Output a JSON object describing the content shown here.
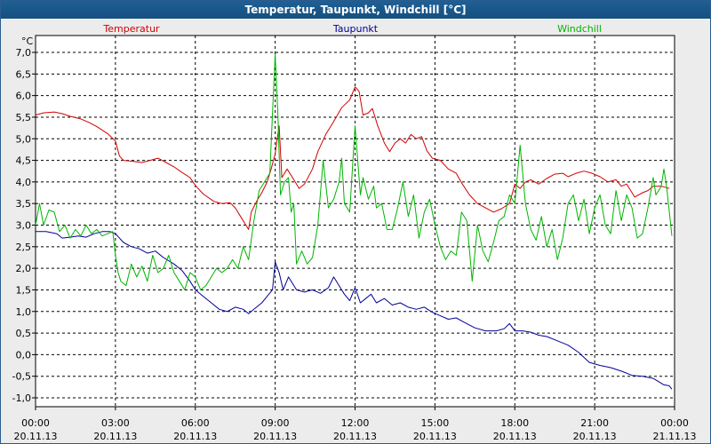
{
  "chart_data": {
    "type": "line",
    "title": "Temperatur, Taupunkt, Windchill [°C]",
    "ylabel": "°C",
    "ylim": [
      -1.1,
      7.2
    ],
    "y_ticks": [
      "7,0",
      "6,5",
      "6,0",
      "5,5",
      "5,0",
      "4,5",
      "4,0",
      "3,5",
      "3,0",
      "2,5",
      "2,0",
      "1,5",
      "1,0",
      "0,5",
      "0,0",
      "-0,5",
      "-1,0"
    ],
    "x_ticks": [
      {
        "time": "00:00",
        "date": "20.11.13"
      },
      {
        "time": "03:00",
        "date": "20.11.13"
      },
      {
        "time": "06:00",
        "date": "20.11.13"
      },
      {
        "time": "09:00",
        "date": "20.11.13"
      },
      {
        "time": "12:00",
        "date": "20.11.13"
      },
      {
        "time": "15:00",
        "date": "20.11.13"
      },
      {
        "time": "18:00",
        "date": "20.11.13"
      },
      {
        "time": "21:00",
        "date": "20.11.13"
      },
      {
        "time": "00:00",
        "date": "21.11.13"
      }
    ],
    "xlim_hours": [
      0,
      24
    ],
    "grid": true,
    "series": [
      {
        "name": "Temperatur",
        "color": "#d40000",
        "points": [
          [
            0,
            5.55
          ],
          [
            0.3,
            5.6
          ],
          [
            0.7,
            5.62
          ],
          [
            1,
            5.58
          ],
          [
            1.3,
            5.52
          ],
          [
            1.7,
            5.46
          ],
          [
            2,
            5.38
          ],
          [
            2.3,
            5.28
          ],
          [
            2.7,
            5.12
          ],
          [
            3,
            4.95
          ],
          [
            3.15,
            4.6
          ],
          [
            3.3,
            4.5
          ],
          [
            3.6,
            4.48
          ],
          [
            4,
            4.45
          ],
          [
            4.3,
            4.5
          ],
          [
            4.6,
            4.55
          ],
          [
            4.9,
            4.45
          ],
          [
            5.2,
            4.35
          ],
          [
            5.5,
            4.22
          ],
          [
            5.8,
            4.1
          ],
          [
            6,
            3.92
          ],
          [
            6.3,
            3.72
          ],
          [
            6.7,
            3.55
          ],
          [
            7,
            3.5
          ],
          [
            7.3,
            3.52
          ],
          [
            7.5,
            3.4
          ],
          [
            7.7,
            3.2
          ],
          [
            7.9,
            3.0
          ],
          [
            8,
            2.9
          ],
          [
            8.1,
            3.3
          ],
          [
            8.3,
            3.55
          ],
          [
            8.5,
            3.75
          ],
          [
            8.7,
            4.0
          ],
          [
            8.85,
            4.3
          ],
          [
            9,
            4.65
          ],
          [
            9.1,
            5.1
          ],
          [
            9.15,
            5.3
          ],
          [
            9.25,
            4.1
          ],
          [
            9.45,
            4.3
          ],
          [
            9.7,
            4.05
          ],
          [
            9.9,
            3.85
          ],
          [
            10.1,
            3.95
          ],
          [
            10.4,
            4.3
          ],
          [
            10.6,
            4.7
          ],
          [
            10.9,
            5.1
          ],
          [
            11.2,
            5.4
          ],
          [
            11.5,
            5.72
          ],
          [
            11.8,
            5.9
          ],
          [
            12,
            6.2
          ],
          [
            12.15,
            6.1
          ],
          [
            12.3,
            5.55
          ],
          [
            12.5,
            5.6
          ],
          [
            12.65,
            5.7
          ],
          [
            12.85,
            5.3
          ],
          [
            13.1,
            4.9
          ],
          [
            13.3,
            4.7
          ],
          [
            13.5,
            4.9
          ],
          [
            13.7,
            5.0
          ],
          [
            13.9,
            4.9
          ],
          [
            14.1,
            5.1
          ],
          [
            14.3,
            5.0
          ],
          [
            14.5,
            5.05
          ],
          [
            14.7,
            4.72
          ],
          [
            14.9,
            4.55
          ],
          [
            15.2,
            4.5
          ],
          [
            15.5,
            4.3
          ],
          [
            15.8,
            4.2
          ],
          [
            16,
            3.98
          ],
          [
            16.3,
            3.7
          ],
          [
            16.6,
            3.5
          ],
          [
            16.9,
            3.4
          ],
          [
            17.2,
            3.3
          ],
          [
            17.5,
            3.38
          ],
          [
            17.8,
            3.5
          ],
          [
            18,
            3.95
          ],
          [
            18.2,
            3.85
          ],
          [
            18.4,
            4.0
          ],
          [
            18.6,
            4.05
          ],
          [
            18.9,
            3.95
          ],
          [
            19.2,
            4.08
          ],
          [
            19.5,
            4.18
          ],
          [
            19.8,
            4.2
          ],
          [
            20,
            4.12
          ],
          [
            20.3,
            4.2
          ],
          [
            20.6,
            4.25
          ],
          [
            20.9,
            4.2
          ],
          [
            21.2,
            4.12
          ],
          [
            21.5,
            4.0
          ],
          [
            21.8,
            4.05
          ],
          [
            22,
            3.9
          ],
          [
            22.2,
            3.95
          ],
          [
            22.5,
            3.65
          ],
          [
            22.8,
            3.75
          ],
          [
            23,
            3.8
          ],
          [
            23.2,
            3.9
          ],
          [
            23.5,
            3.9
          ],
          [
            23.8,
            3.85
          ]
        ]
      },
      {
        "name": "Taupunkt",
        "color": "#00009a",
        "points": [
          [
            0,
            2.85
          ],
          [
            0.4,
            2.85
          ],
          [
            0.8,
            2.8
          ],
          [
            1,
            2.7
          ],
          [
            1.3,
            2.72
          ],
          [
            1.6,
            2.75
          ],
          [
            1.9,
            2.72
          ],
          [
            2.2,
            2.8
          ],
          [
            2.5,
            2.85
          ],
          [
            2.8,
            2.85
          ],
          [
            3,
            2.8
          ],
          [
            3.3,
            2.6
          ],
          [
            3.6,
            2.5
          ],
          [
            3.9,
            2.45
          ],
          [
            4.2,
            2.35
          ],
          [
            4.5,
            2.4
          ],
          [
            4.8,
            2.25
          ],
          [
            5.2,
            2.1
          ],
          [
            5.5,
            1.95
          ],
          [
            5.8,
            1.7
          ],
          [
            6,
            1.5
          ],
          [
            6.3,
            1.35
          ],
          [
            6.6,
            1.2
          ],
          [
            6.9,
            1.05
          ],
          [
            7.2,
            1.0
          ],
          [
            7.5,
            1.1
          ],
          [
            7.8,
            1.05
          ],
          [
            8,
            0.95
          ],
          [
            8.2,
            1.05
          ],
          [
            8.5,
            1.2
          ],
          [
            8.7,
            1.35
          ],
          [
            8.9,
            1.5
          ],
          [
            9,
            2.15
          ],
          [
            9.15,
            1.9
          ],
          [
            9.3,
            1.5
          ],
          [
            9.5,
            1.8
          ],
          [
            9.8,
            1.5
          ],
          [
            10.1,
            1.45
          ],
          [
            10.4,
            1.5
          ],
          [
            10.7,
            1.42
          ],
          [
            11,
            1.55
          ],
          [
            11.2,
            1.8
          ],
          [
            11.4,
            1.6
          ],
          [
            11.6,
            1.4
          ],
          [
            11.8,
            1.25
          ],
          [
            12,
            1.55
          ],
          [
            12.2,
            1.2
          ],
          [
            12.4,
            1.3
          ],
          [
            12.6,
            1.4
          ],
          [
            12.8,
            1.2
          ],
          [
            13.1,
            1.3
          ],
          [
            13.4,
            1.15
          ],
          [
            13.7,
            1.2
          ],
          [
            14,
            1.1
          ],
          [
            14.3,
            1.05
          ],
          [
            14.6,
            1.1
          ],
          [
            14.9,
            0.98
          ],
          [
            15.2,
            0.9
          ],
          [
            15.5,
            0.82
          ],
          [
            15.8,
            0.85
          ],
          [
            16.1,
            0.75
          ],
          [
            16.5,
            0.62
          ],
          [
            16.9,
            0.55
          ],
          [
            17.3,
            0.55
          ],
          [
            17.6,
            0.6
          ],
          [
            17.8,
            0.72
          ],
          [
            18,
            0.55
          ],
          [
            18.3,
            0.55
          ],
          [
            18.6,
            0.52
          ],
          [
            18.9,
            0.45
          ],
          [
            19.2,
            0.42
          ],
          [
            19.6,
            0.32
          ],
          [
            20,
            0.22
          ],
          [
            20.4,
            0.05
          ],
          [
            20.8,
            -0.18
          ],
          [
            21.2,
            -0.25
          ],
          [
            21.6,
            -0.3
          ],
          [
            22,
            -0.38
          ],
          [
            22.4,
            -0.48
          ],
          [
            22.8,
            -0.5
          ],
          [
            23.2,
            -0.55
          ],
          [
            23.6,
            -0.7
          ],
          [
            23.8,
            -0.72
          ],
          [
            23.9,
            -0.8
          ]
        ]
      },
      {
        "name": "Windchill",
        "color": "#00b400",
        "points": [
          [
            0,
            3.0
          ],
          [
            0.15,
            3.5
          ],
          [
            0.3,
            3.0
          ],
          [
            0.5,
            3.35
          ],
          [
            0.7,
            3.3
          ],
          [
            0.9,
            2.85
          ],
          [
            1.1,
            3.0
          ],
          [
            1.3,
            2.7
          ],
          [
            1.5,
            2.9
          ],
          [
            1.7,
            2.75
          ],
          [
            1.9,
            3.0
          ],
          [
            2.1,
            2.8
          ],
          [
            2.3,
            2.9
          ],
          [
            2.5,
            2.75
          ],
          [
            2.7,
            2.8
          ],
          [
            2.9,
            2.85
          ],
          [
            3.0,
            2.3
          ],
          [
            3.1,
            1.9
          ],
          [
            3.2,
            1.7
          ],
          [
            3.4,
            1.6
          ],
          [
            3.6,
            2.1
          ],
          [
            3.8,
            1.8
          ],
          [
            4.0,
            2.05
          ],
          [
            4.2,
            1.7
          ],
          [
            4.4,
            2.3
          ],
          [
            4.6,
            1.9
          ],
          [
            4.8,
            2.0
          ],
          [
            5.0,
            2.3
          ],
          [
            5.2,
            1.9
          ],
          [
            5.4,
            1.7
          ],
          [
            5.6,
            1.5
          ],
          [
            5.8,
            1.9
          ],
          [
            6.0,
            1.8
          ],
          [
            6.2,
            1.5
          ],
          [
            6.4,
            1.6
          ],
          [
            6.6,
            1.8
          ],
          [
            6.8,
            2.0
          ],
          [
            7.0,
            1.9
          ],
          [
            7.2,
            2.0
          ],
          [
            7.4,
            2.2
          ],
          [
            7.6,
            2.0
          ],
          [
            7.8,
            2.5
          ],
          [
            8.0,
            2.2
          ],
          [
            8.2,
            3.1
          ],
          [
            8.4,
            3.8
          ],
          [
            8.6,
            4.0
          ],
          [
            8.8,
            4.2
          ],
          [
            9.0,
            6.95
          ],
          [
            9.1,
            5.6
          ],
          [
            9.2,
            3.7
          ],
          [
            9.35,
            4.0
          ],
          [
            9.5,
            4.1
          ],
          [
            9.6,
            3.3
          ],
          [
            9.7,
            3.5
          ],
          [
            9.8,
            2.1
          ],
          [
            10.0,
            2.4
          ],
          [
            10.2,
            2.1
          ],
          [
            10.4,
            2.25
          ],
          [
            10.6,
            3.0
          ],
          [
            10.8,
            4.5
          ],
          [
            11.0,
            3.4
          ],
          [
            11.2,
            3.6
          ],
          [
            11.4,
            4.0
          ],
          [
            11.5,
            4.55
          ],
          [
            11.6,
            3.5
          ],
          [
            11.8,
            3.3
          ],
          [
            12.0,
            5.3
          ],
          [
            12.2,
            3.7
          ],
          [
            12.3,
            4.1
          ],
          [
            12.5,
            3.6
          ],
          [
            12.7,
            3.9
          ],
          [
            12.8,
            3.4
          ],
          [
            13.0,
            3.5
          ],
          [
            13.2,
            2.9
          ],
          [
            13.4,
            2.9
          ],
          [
            13.6,
            3.4
          ],
          [
            13.8,
            4.0
          ],
          [
            14.0,
            3.2
          ],
          [
            14.2,
            3.7
          ],
          [
            14.3,
            3.2
          ],
          [
            14.4,
            2.7
          ],
          [
            14.6,
            3.3
          ],
          [
            14.8,
            3.6
          ],
          [
            15.0,
            3.0
          ],
          [
            15.2,
            2.5
          ],
          [
            15.4,
            2.2
          ],
          [
            15.6,
            2.4
          ],
          [
            15.8,
            2.3
          ],
          [
            16.0,
            3.3
          ],
          [
            16.2,
            3.1
          ],
          [
            16.4,
            1.7
          ],
          [
            16.6,
            3.0
          ],
          [
            16.8,
            2.4
          ],
          [
            17.0,
            2.15
          ],
          [
            17.2,
            2.6
          ],
          [
            17.4,
            3.1
          ],
          [
            17.6,
            3.2
          ],
          [
            17.8,
            3.7
          ],
          [
            18.0,
            3.5
          ],
          [
            18.2,
            4.85
          ],
          [
            18.4,
            3.5
          ],
          [
            18.6,
            2.9
          ],
          [
            18.8,
            2.65
          ],
          [
            19.0,
            3.2
          ],
          [
            19.2,
            2.5
          ],
          [
            19.4,
            2.9
          ],
          [
            19.6,
            2.2
          ],
          [
            19.8,
            2.7
          ],
          [
            20.0,
            3.5
          ],
          [
            20.2,
            3.7
          ],
          [
            20.4,
            3.1
          ],
          [
            20.6,
            3.6
          ],
          [
            20.8,
            2.8
          ],
          [
            21.0,
            3.4
          ],
          [
            21.2,
            3.7
          ],
          [
            21.4,
            3.0
          ],
          [
            21.6,
            2.8
          ],
          [
            21.8,
            3.8
          ],
          [
            22.0,
            3.1
          ],
          [
            22.2,
            3.7
          ],
          [
            22.4,
            3.4
          ],
          [
            22.6,
            2.7
          ],
          [
            22.8,
            2.8
          ],
          [
            23.0,
            3.4
          ],
          [
            23.2,
            4.1
          ],
          [
            23.3,
            3.7
          ],
          [
            23.5,
            3.9
          ],
          [
            23.6,
            4.3
          ],
          [
            23.7,
            3.9
          ],
          [
            23.9,
            2.75
          ]
        ]
      }
    ]
  }
}
